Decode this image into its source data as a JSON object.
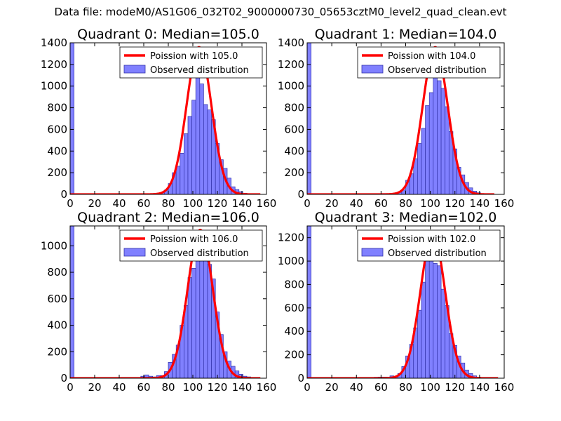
{
  "figure": {
    "suptitle": "Data file: modeM0/AS1G06_032T02_9000000730_05653cztM0_level2_quad_clean.evt"
  },
  "colors": {
    "bar_fill": "#8080ff",
    "bar_edge": "#3333aa",
    "curve": "#ff0000",
    "axes": "#000000",
    "background": "#ffffff"
  },
  "chart_data": [
    {
      "type": "bar",
      "title": "Quadrant 0: Median=105.0",
      "xlim": [
        0,
        160
      ],
      "ylim": [
        0,
        1400
      ],
      "xticks": [
        0,
        20,
        40,
        60,
        80,
        100,
        120,
        140,
        160
      ],
      "yticks": [
        0,
        200,
        400,
        600,
        800,
        1000,
        1200,
        1400
      ],
      "legend": {
        "location": "upper right",
        "entries": [
          "Poission with 105.0",
          "Observed distribution"
        ]
      },
      "bin_width": 3.2,
      "bins": [
        {
          "x": 0,
          "y": 1400
        },
        {
          "x": 67.2,
          "y": 5
        },
        {
          "x": 70.4,
          "y": 8
        },
        {
          "x": 73.6,
          "y": 15
        },
        {
          "x": 76.8,
          "y": 40
        },
        {
          "x": 80,
          "y": 100
        },
        {
          "x": 83.2,
          "y": 200
        },
        {
          "x": 86.4,
          "y": 260
        },
        {
          "x": 89.6,
          "y": 380
        },
        {
          "x": 92.8,
          "y": 560
        },
        {
          "x": 96,
          "y": 720
        },
        {
          "x": 99.2,
          "y": 870
        },
        {
          "x": 102.4,
          "y": 1080
        },
        {
          "x": 105.6,
          "y": 1020
        },
        {
          "x": 108.8,
          "y": 830
        },
        {
          "x": 112,
          "y": 780
        },
        {
          "x": 115.2,
          "y": 690
        },
        {
          "x": 118.4,
          "y": 470
        },
        {
          "x": 121.6,
          "y": 320
        },
        {
          "x": 124.8,
          "y": 240
        },
        {
          "x": 128,
          "y": 150
        },
        {
          "x": 131.2,
          "y": 70
        },
        {
          "x": 134.4,
          "y": 45
        },
        {
          "x": 137.6,
          "y": 25
        },
        {
          "x": 140.8,
          "y": 10
        },
        {
          "x": 144,
          "y": 5
        }
      ],
      "fit": {
        "label": "Poission with 105.0",
        "center": 105,
        "peak": 1360,
        "sigma": 10.1,
        "x_range": [
          0,
          155
        ]
      }
    },
    {
      "type": "bar",
      "title": "Quadrant 1: Median=104.0",
      "xlim": [
        0,
        160
      ],
      "ylim": [
        0,
        1400
      ],
      "xticks": [
        0,
        20,
        40,
        60,
        80,
        100,
        120,
        140,
        160
      ],
      "yticks": [
        0,
        200,
        400,
        600,
        800,
        1000,
        1200,
        1400
      ],
      "legend": {
        "location": "upper right",
        "entries": [
          "Poission with 104.0",
          "Observed distribution"
        ]
      },
      "bin_width": 3.2,
      "bins": [
        {
          "x": 0,
          "y": 1400
        },
        {
          "x": 48,
          "y": 5
        },
        {
          "x": 60.8,
          "y": 8
        },
        {
          "x": 67.2,
          "y": 6
        },
        {
          "x": 70.4,
          "y": 10
        },
        {
          "x": 73.6,
          "y": 20
        },
        {
          "x": 76.8,
          "y": 40
        },
        {
          "x": 80,
          "y": 130
        },
        {
          "x": 83.2,
          "y": 190
        },
        {
          "x": 86.4,
          "y": 330
        },
        {
          "x": 89.6,
          "y": 470
        },
        {
          "x": 92.8,
          "y": 610
        },
        {
          "x": 96,
          "y": 820
        },
        {
          "x": 99.2,
          "y": 940
        },
        {
          "x": 102.4,
          "y": 1300
        },
        {
          "x": 105.6,
          "y": 1050
        },
        {
          "x": 108.8,
          "y": 980
        },
        {
          "x": 112,
          "y": 810
        },
        {
          "x": 115.2,
          "y": 580
        },
        {
          "x": 118.4,
          "y": 420
        },
        {
          "x": 121.6,
          "y": 250
        },
        {
          "x": 124.8,
          "y": 180
        },
        {
          "x": 128,
          "y": 110
        },
        {
          "x": 131.2,
          "y": 60
        },
        {
          "x": 134.4,
          "y": 30
        },
        {
          "x": 137.6,
          "y": 15
        },
        {
          "x": 140.8,
          "y": 5
        }
      ],
      "fit": {
        "label": "Poission with 104.0",
        "center": 104,
        "peak": 1360,
        "sigma": 10.1,
        "x_range": [
          0,
          152
        ]
      }
    },
    {
      "type": "bar",
      "title": "Quadrant 2: Median=106.0",
      "xlim": [
        0,
        160
      ],
      "ylim": [
        0,
        1150
      ],
      "xticks": [
        0,
        20,
        40,
        60,
        80,
        100,
        120,
        140,
        160
      ],
      "yticks": [
        0,
        200,
        400,
        600,
        800,
        1000
      ],
      "legend": {
        "location": "upper right",
        "entries": [
          "Poission with 106.0",
          "Observed distribution"
        ]
      },
      "bin_width": 3.2,
      "bins": [
        {
          "x": 0,
          "y": 1150
        },
        {
          "x": 51.2,
          "y": 5
        },
        {
          "x": 57.6,
          "y": 15
        },
        {
          "x": 60.8,
          "y": 25
        },
        {
          "x": 64,
          "y": 15
        },
        {
          "x": 67.2,
          "y": 10
        },
        {
          "x": 70.4,
          "y": 20
        },
        {
          "x": 73.6,
          "y": 20
        },
        {
          "x": 76.8,
          "y": 50
        },
        {
          "x": 80,
          "y": 120
        },
        {
          "x": 83.2,
          "y": 180
        },
        {
          "x": 86.4,
          "y": 250
        },
        {
          "x": 89.6,
          "y": 400
        },
        {
          "x": 92.8,
          "y": 550
        },
        {
          "x": 96,
          "y": 760
        },
        {
          "x": 99.2,
          "y": 830
        },
        {
          "x": 102.4,
          "y": 980
        },
        {
          "x": 105.6,
          "y": 1110
        },
        {
          "x": 108.8,
          "y": 1000
        },
        {
          "x": 112,
          "y": 860
        },
        {
          "x": 115.2,
          "y": 750
        },
        {
          "x": 118.4,
          "y": 500
        },
        {
          "x": 121.6,
          "y": 330
        },
        {
          "x": 124.8,
          "y": 200
        },
        {
          "x": 128,
          "y": 130
        },
        {
          "x": 131.2,
          "y": 90
        },
        {
          "x": 134.4,
          "y": 55
        },
        {
          "x": 137.6,
          "y": 30
        },
        {
          "x": 140.8,
          "y": 15
        },
        {
          "x": 144,
          "y": 10
        },
        {
          "x": 147.2,
          "y": 5
        }
      ],
      "fit": {
        "label": "Poission with 106.0",
        "center": 106,
        "peak": 1120,
        "sigma": 10.2,
        "x_range": [
          0,
          155
        ]
      }
    },
    {
      "type": "bar",
      "title": "Quadrant 3: Median=102.0",
      "xlim": [
        0,
        160
      ],
      "ylim": [
        0,
        1300
      ],
      "xticks": [
        0,
        20,
        40,
        60,
        80,
        100,
        120,
        140,
        160
      ],
      "yticks": [
        0,
        200,
        400,
        600,
        800,
        1000,
        1200
      ],
      "legend": {
        "location": "upper right",
        "entries": [
          "Poission with 102.0",
          "Observed distribution"
        ]
      },
      "bin_width": 3.2,
      "bins": [
        {
          "x": 0,
          "y": 1300
        },
        {
          "x": 48,
          "y": 5
        },
        {
          "x": 54.4,
          "y": 8
        },
        {
          "x": 57.6,
          "y": 10
        },
        {
          "x": 60.8,
          "y": 10
        },
        {
          "x": 64,
          "y": 10
        },
        {
          "x": 67.2,
          "y": 20
        },
        {
          "x": 70.4,
          "y": 15
        },
        {
          "x": 73.6,
          "y": 40
        },
        {
          "x": 76.8,
          "y": 100
        },
        {
          "x": 80,
          "y": 190
        },
        {
          "x": 83.2,
          "y": 290
        },
        {
          "x": 86.4,
          "y": 430
        },
        {
          "x": 89.6,
          "y": 580
        },
        {
          "x": 92.8,
          "y": 820
        },
        {
          "x": 96,
          "y": 1050
        },
        {
          "x": 99.2,
          "y": 1150
        },
        {
          "x": 102.4,
          "y": 980
        },
        {
          "x": 105.6,
          "y": 960
        },
        {
          "x": 108.8,
          "y": 760
        },
        {
          "x": 112,
          "y": 620
        },
        {
          "x": 115.2,
          "y": 380
        },
        {
          "x": 118.4,
          "y": 280
        },
        {
          "x": 121.6,
          "y": 190
        },
        {
          "x": 124.8,
          "y": 130
        },
        {
          "x": 128,
          "y": 70
        },
        {
          "x": 131.2,
          "y": 40
        },
        {
          "x": 134.4,
          "y": 20
        },
        {
          "x": 137.6,
          "y": 10
        },
        {
          "x": 140.8,
          "y": 5
        }
      ],
      "fit": {
        "label": "Poission with 102.0",
        "center": 102,
        "peak": 1230,
        "sigma": 10.0,
        "x_range": [
          0,
          155
        ]
      }
    }
  ]
}
